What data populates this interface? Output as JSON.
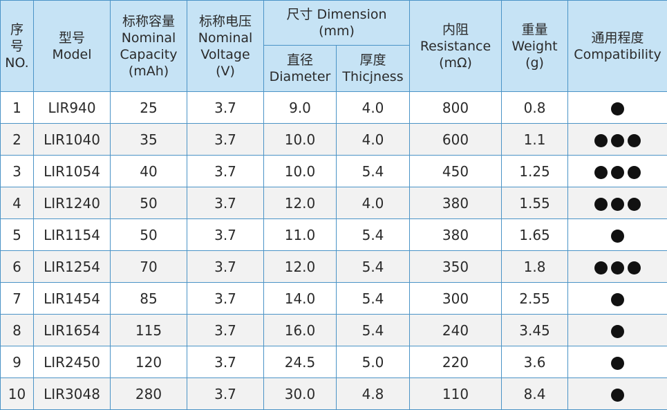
{
  "headers": {
    "seq": [
      "序",
      "号",
      "NO."
    ],
    "model": [
      "型号",
      "Model"
    ],
    "capacity": [
      "标称容量",
      "Nominal",
      "Capacity",
      "(mAh)"
    ],
    "voltage": [
      "标称电压",
      "Nominal",
      "Voltage",
      "(V)"
    ],
    "dimension": [
      "尺寸 Dimension",
      "(mm)"
    ],
    "diameter": [
      "直径",
      "Diameter"
    ],
    "thickness": [
      "厚度",
      "Thicjness"
    ],
    "resistance": [
      "内阻",
      "Resistance",
      "(mΩ)"
    ],
    "weight": [
      "重量",
      "Weight",
      "(g)"
    ],
    "compatibility": [
      "通用程度",
      "Compatibility"
    ]
  },
  "rows": [
    {
      "no": "1",
      "model": "LIR940",
      "capacity": "25",
      "voltage": "3.7",
      "diameter": "9.0",
      "thickness": "4.0",
      "resistance": "800",
      "weight": "0.8",
      "compatibility": 1
    },
    {
      "no": "2",
      "model": "LIR1040",
      "capacity": "35",
      "voltage": "3.7",
      "diameter": "10.0",
      "thickness": "4.0",
      "resistance": "600",
      "weight": "1.1",
      "compatibility": 3
    },
    {
      "no": "3",
      "model": "LIR1054",
      "capacity": "40",
      "voltage": "3.7",
      "diameter": "10.0",
      "thickness": "5.4",
      "resistance": "450",
      "weight": "1.25",
      "compatibility": 3
    },
    {
      "no": "4",
      "model": "LIR1240",
      "capacity": "50",
      "voltage": "3.7",
      "diameter": "12.0",
      "thickness": "4.0",
      "resistance": "380",
      "weight": "1.55",
      "compatibility": 3
    },
    {
      "no": "5",
      "model": "LIR1154",
      "capacity": "50",
      "voltage": "3.7",
      "diameter": "11.0",
      "thickness": "5.4",
      "resistance": "380",
      "weight": "1.65",
      "compatibility": 1
    },
    {
      "no": "6",
      "model": "LIR1254",
      "capacity": "70",
      "voltage": "3.7",
      "diameter": "12.0",
      "thickness": "5.4",
      "resistance": "350",
      "weight": "1.8",
      "compatibility": 3
    },
    {
      "no": "7",
      "model": "LIR1454",
      "capacity": "85",
      "voltage": "3.7",
      "diameter": "14.0",
      "thickness": "5.4",
      "resistance": "300",
      "weight": "2.55",
      "compatibility": 1
    },
    {
      "no": "8",
      "model": "LIR1654",
      "capacity": "115",
      "voltage": "3.7",
      "diameter": "16.0",
      "thickness": "5.4",
      "resistance": "240",
      "weight": "3.45",
      "compatibility": 1
    },
    {
      "no": "9",
      "model": "LIR2450",
      "capacity": "120",
      "voltage": "3.7",
      "diameter": "24.5",
      "thickness": "5.0",
      "resistance": "220",
      "weight": "3.6",
      "compatibility": 1
    },
    {
      "no": "10",
      "model": "LIR3048",
      "capacity": "280",
      "voltage": "3.7",
      "diameter": "30.0",
      "thickness": "4.8",
      "resistance": "110",
      "weight": "8.4",
      "compatibility": 1
    }
  ],
  "colors": {
    "header_bg": "#c6e3f5",
    "grid_line": "#4a93c6",
    "stripe_bg": "#f2f2f2",
    "dot": "#111111"
  }
}
